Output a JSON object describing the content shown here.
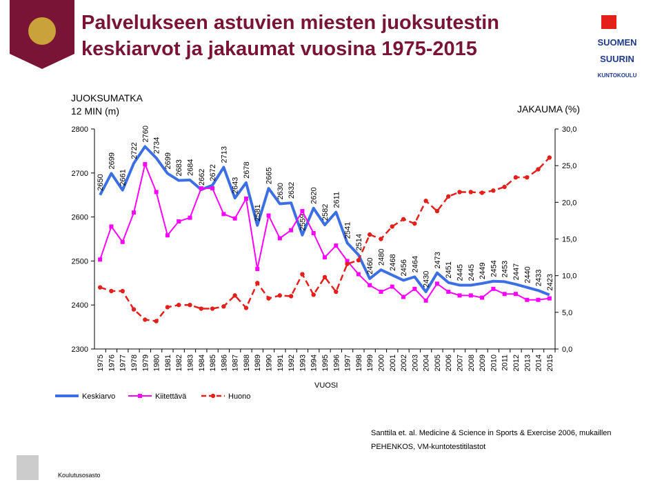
{
  "chart_data": {
    "type": "line",
    "title": "Palvelukseen astuvien miesten juoksutestin\nkeskiarvot ja jakaumat vuosina 1975-2015",
    "y_label": "JUOKSUMATKA\n12 MIN (m)",
    "y2_label": "JAKAUMA (%)",
    "x_label": "VUOSI",
    "source": "Santtila et. al. Medicine & Science in Sports & Exercise 2006, mukaillen\nPEHENKOS, VM-kuntotestitilastot",
    "footer": "Koulutusosasto",
    "logo": [
      "SUOMEN",
      "SUURIN",
      "KUNTOKOULU"
    ],
    "categories": [
      "1975",
      "1976",
      "1977",
      "1978",
      "1979",
      "1980",
      "1981",
      "1982",
      "1983",
      "1984",
      "1985",
      "1986",
      "1987",
      "1988",
      "1989",
      "1990",
      "1991",
      "1992",
      "1993",
      "1994",
      "1995",
      "1996",
      "1997",
      "1998",
      "1999",
      "2000",
      "2001",
      "2002",
      "2003",
      "2004",
      "2005",
      "2006",
      "2007",
      "2008",
      "2009",
      "2010",
      "2011",
      "2012",
      "2013",
      "2014",
      "2015"
    ],
    "series": [
      {
        "name": "Keskiarvo",
        "color": "#3b6fe3",
        "width": 4,
        "marker": "none",
        "dashed": false,
        "data_labels": true,
        "values": [
          2650,
          2699,
          2661,
          2722,
          2760,
          2734,
          2699,
          2683,
          2684,
          2662,
          2672,
          2713,
          2643,
          2678,
          2581,
          2665,
          2630,
          2632,
          2559,
          2620,
          2582,
          2611,
          2541,
          2514,
          2460,
          2480,
          2468,
          2456,
          2464,
          2430,
          2473,
          2451,
          2445,
          2445,
          2449,
          2454,
          2453,
          2447,
          2440,
          2433,
          2423
        ]
      },
      {
        "name": "Kiitettävä",
        "color": "#ff00ff",
        "width": 2,
        "marker": "square",
        "dashed": false,
        "axis": "y2",
        "values": [
          12.2,
          16.7,
          14.6,
          18.6,
          25.2,
          21.4,
          15.5,
          17.4,
          17.9,
          21.9,
          21.9,
          18.4,
          17.8,
          20.5,
          10.9,
          18.2,
          15.1,
          16.2,
          18.8,
          15.8,
          12.5,
          14.1,
          12.0,
          10.2,
          8.7,
          7.8,
          8.5,
          7.1,
          8.2,
          6.6,
          8.9,
          7.8,
          7.3,
          7.3,
          7.0,
          8.2,
          7.5,
          7.5,
          6.7,
          6.7,
          6.9
        ]
      },
      {
        "name": "Huono",
        "color": "#e3201b",
        "width": 2.5,
        "marker": "circle",
        "dashed": true,
        "axis": "y2",
        "values": [
          8.4,
          7.9,
          7.9,
          5.4,
          4.0,
          3.8,
          5.7,
          6.0,
          6.0,
          5.5,
          5.5,
          5.8,
          7.3,
          5.6,
          9.0,
          6.9,
          7.3,
          7.2,
          10.2,
          7.4,
          9.8,
          7.8,
          11.6,
          12.1,
          15.6,
          15.0,
          16.7,
          17.7,
          17.1,
          20.2,
          18.8,
          20.8,
          21.4,
          21.4,
          21.3,
          21.6,
          22.1,
          23.4,
          23.4,
          24.5,
          26.1
        ]
      }
    ],
    "ylim": [
      2300,
      2800
    ],
    "yticks": [
      2300,
      2400,
      2500,
      2600,
      2700,
      2800
    ],
    "y2lim": [
      0,
      30
    ],
    "y2ticks": [
      {
        "value": 0,
        "label": "0,0"
      },
      {
        "value": 5,
        "label": "5,0"
      },
      {
        "value": 10,
        "label": "10,0"
      },
      {
        "value": 15,
        "label": "15,0"
      },
      {
        "value": 20,
        "label": "20,0"
      },
      {
        "value": 25,
        "label": "25,0"
      },
      {
        "value": 30,
        "label": "30,0"
      }
    ],
    "grid": false,
    "legend": "bottom"
  }
}
